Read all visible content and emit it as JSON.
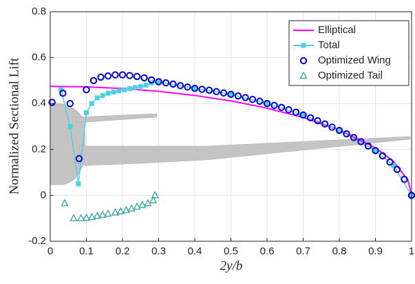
{
  "chart_data": {
    "type": "line",
    "xlabel": "2y/b",
    "ylabel": "Normalized Sectional Lift",
    "xlim": [
      0,
      1
    ],
    "ylim": [
      -0.2,
      0.8
    ],
    "xticks": [
      0,
      0.1,
      0.2,
      0.3,
      0.4,
      0.5,
      0.6,
      0.7,
      0.8,
      0.9,
      1
    ],
    "yticks": [
      -0.2,
      0,
      0.2,
      0.4,
      0.6,
      0.8
    ],
    "grid": true,
    "legend": "upper right",
    "series": [
      {
        "name": "Elliptical",
        "color": "#ff00ff",
        "marker": "none",
        "line": true,
        "x": [
          0,
          0.1,
          0.2,
          0.3,
          0.4,
          0.5,
          0.6,
          0.7,
          0.8,
          0.9,
          0.95,
          0.99,
          1
        ],
        "values": [
          0.475,
          0.4726,
          0.4654,
          0.4531,
          0.4353,
          0.4114,
          0.38,
          0.3392,
          0.285,
          0.207,
          0.148,
          0.067,
          0
        ]
      },
      {
        "name": "Total",
        "color": "#4fd0e2",
        "marker": "square",
        "line": true,
        "x": [
          0.03,
          0.055,
          0.078,
          0.1,
          0.115,
          0.13,
          0.145,
          0.16,
          0.175,
          0.19,
          0.205,
          0.22,
          0.235,
          0.25,
          0.265,
          0.28,
          0.3,
          0.4,
          0.5,
          0.6,
          0.7,
          0.8,
          0.9,
          0.95,
          1
        ],
        "values": [
          0.46,
          0.3,
          0.05,
          0.36,
          0.4,
          0.425,
          0.435,
          0.445,
          0.45,
          0.455,
          0.46,
          0.465,
          0.47,
          0.475,
          0.48,
          0.49,
          0.495,
          0.466,
          0.44,
          0.4,
          0.35,
          0.283,
          0.195,
          0.13,
          0
        ]
      },
      {
        "name": "Optimized Wing",
        "color": "#0000cc",
        "marker": "circle",
        "line": false,
        "x": [
          0.005,
          0.035,
          0.055,
          0.08,
          0.1,
          0.12,
          0.14,
          0.16,
          0.18,
          0.2,
          0.22,
          0.24,
          0.26,
          0.28,
          0.3,
          0.32,
          0.34,
          0.36,
          0.38,
          0.4,
          0.42,
          0.44,
          0.46,
          0.48,
          0.5,
          0.52,
          0.54,
          0.56,
          0.58,
          0.6,
          0.62,
          0.64,
          0.66,
          0.68,
          0.7,
          0.72,
          0.74,
          0.76,
          0.78,
          0.8,
          0.82,
          0.84,
          0.86,
          0.88,
          0.9,
          0.92,
          0.94,
          0.96,
          0.98,
          1
        ],
        "values": [
          0.405,
          0.445,
          0.4,
          0.16,
          0.46,
          0.5,
          0.515,
          0.52,
          0.525,
          0.525,
          0.522,
          0.518,
          0.512,
          0.503,
          0.495,
          0.49,
          0.485,
          0.478,
          0.472,
          0.466,
          0.462,
          0.458,
          0.452,
          0.446,
          0.44,
          0.433,
          0.426,
          0.418,
          0.41,
          0.4,
          0.392,
          0.383,
          0.373,
          0.362,
          0.35,
          0.338,
          0.325,
          0.311,
          0.297,
          0.283,
          0.268,
          0.252,
          0.234,
          0.215,
          0.195,
          0.172,
          0.145,
          0.113,
          0.07,
          0
        ]
      },
      {
        "name": "Optimized Tail",
        "color": "#3aa8a8",
        "marker": "triangle",
        "line": false,
        "x": [
          0.04,
          0.065,
          0.085,
          0.1,
          0.115,
          0.13,
          0.145,
          0.16,
          0.18,
          0.195,
          0.21,
          0.225,
          0.24,
          0.255,
          0.27,
          0.285,
          0.29
        ],
        "values": [
          -0.035,
          -0.1,
          -0.1,
          -0.098,
          -0.095,
          -0.09,
          -0.085,
          -0.08,
          -0.075,
          -0.07,
          -0.065,
          -0.058,
          -0.05,
          -0.042,
          -0.035,
          -0.022,
          0
        ]
      }
    ]
  }
}
